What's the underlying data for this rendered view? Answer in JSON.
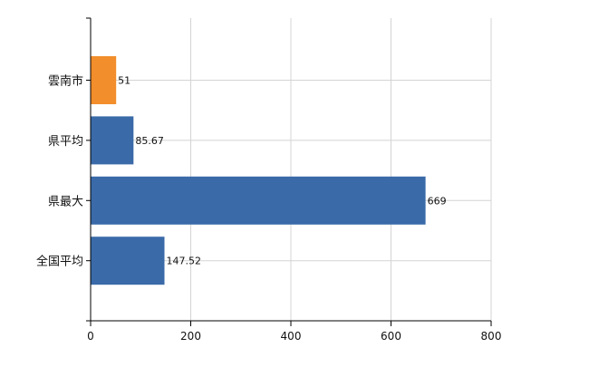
{
  "chart_data": {
    "type": "bar",
    "orientation": "horizontal",
    "categories": [
      "雲南市",
      "県平均",
      "県最大",
      "全国平均"
    ],
    "values": [
      51,
      85.67,
      669,
      147.52
    ],
    "value_labels": [
      "51",
      "85.67",
      "669",
      "147.52"
    ],
    "bar_colors": [
      "#f28e2b",
      "#3a6aa8",
      "#3a6aa8",
      "#3a6aa8"
    ],
    "xlim": [
      0,
      800
    ],
    "xticks": [
      0,
      200,
      400,
      600,
      800
    ],
    "xtick_labels": [
      "0",
      "200",
      "400",
      "600",
      "800"
    ],
    "grid": true,
    "title": "",
    "xlabel": "",
    "ylabel": ""
  }
}
